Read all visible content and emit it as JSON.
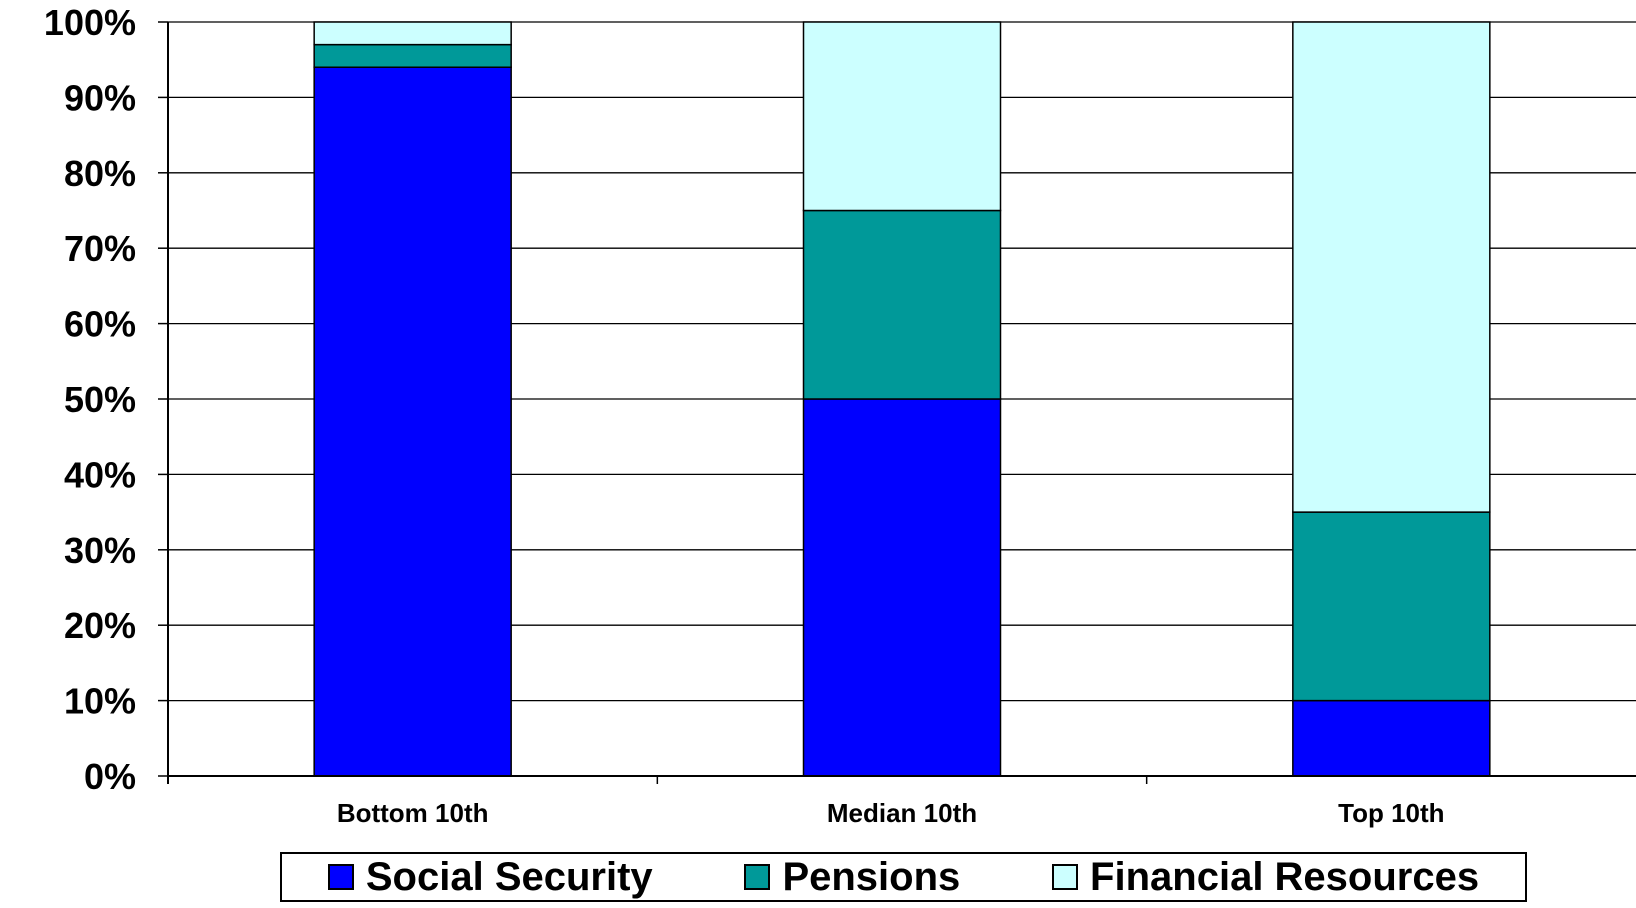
{
  "chart_data": {
    "type": "bar",
    "stacked": true,
    "categories": [
      "Bottom 10th",
      "Median 10th",
      "Top 10th"
    ],
    "series": [
      {
        "name": "Social Security",
        "color": "#0000ff",
        "values": [
          94,
          50,
          10
        ]
      },
      {
        "name": "Pensions",
        "color": "#009999",
        "values": [
          3,
          25,
          25
        ]
      },
      {
        "name": "Financial Resources",
        "color": "#ccffff",
        "values": [
          3,
          25,
          65
        ]
      }
    ],
    "yticks": [
      "0%",
      "10%",
      "20%",
      "30%",
      "40%",
      "50%",
      "60%",
      "70%",
      "80%",
      "90%",
      "100%"
    ],
    "ylim": [
      0,
      100
    ],
    "grid": true,
    "legend_position": "bottom",
    "title": "",
    "xlabel": "",
    "ylabel": ""
  }
}
